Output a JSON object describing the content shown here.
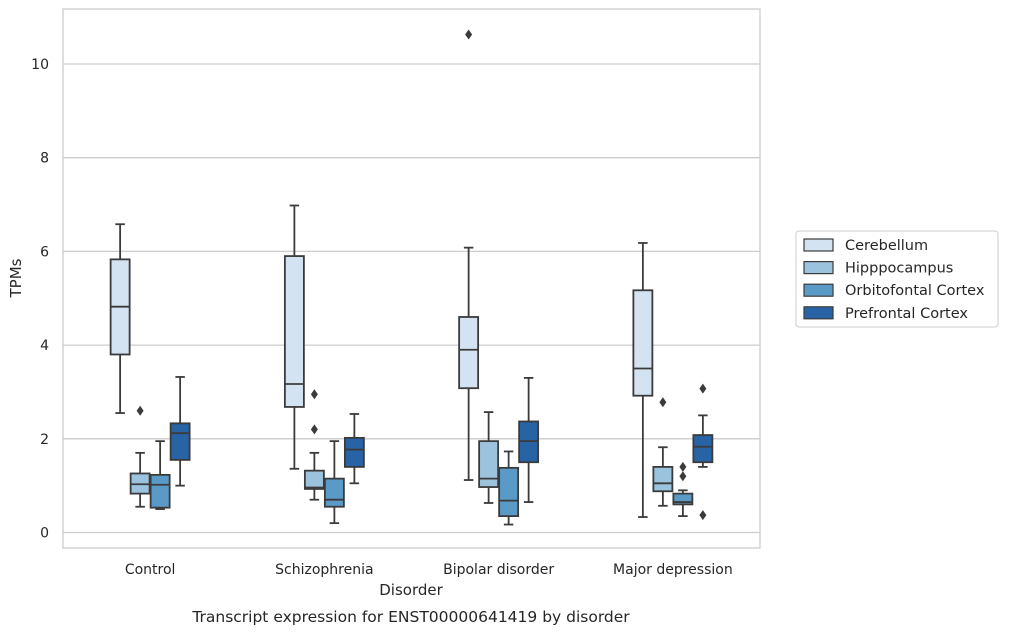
{
  "chart_data": {
    "type": "box",
    "caption": "Transcript expression for ENST00000641419 by disorder",
    "xlabel": "Disorder",
    "ylabel": "TPMs",
    "ylim": [
      -0.3,
      11.2
    ],
    "yticks": [
      0,
      2,
      4,
      6,
      8,
      10
    ],
    "grid": "horizontal",
    "legend_position": "right",
    "categories": [
      "Control",
      "Schizophrenia",
      "Bipolar disorder",
      "Major depression"
    ],
    "series": [
      {
        "name": "Cerebellum",
        "color": "#d3e3f1",
        "boxes": [
          {
            "whislo": 2.55,
            "q1": 3.8,
            "med": 4.82,
            "q3": 5.83,
            "whishi": 6.58,
            "fliers": []
          },
          {
            "whislo": 1.36,
            "q1": 2.68,
            "med": 3.17,
            "q3": 5.9,
            "whishi": 6.98,
            "fliers": []
          },
          {
            "whislo": 1.12,
            "q1": 3.08,
            "med": 3.9,
            "q3": 4.6,
            "whishi": 6.08,
            "fliers": [
              10.63
            ]
          },
          {
            "whislo": 0.33,
            "q1": 2.92,
            "med": 3.5,
            "q3": 5.17,
            "whishi": 6.18,
            "fliers": []
          }
        ]
      },
      {
        "name": "Hipppocampus",
        "color": "#9cc3dd",
        "boxes": [
          {
            "whislo": 0.55,
            "q1": 0.83,
            "med": 1.03,
            "q3": 1.26,
            "whishi": 1.7,
            "fliers": [
              2.6
            ]
          },
          {
            "whislo": 0.7,
            "q1": 0.93,
            "med": 0.96,
            "q3": 1.32,
            "whishi": 1.7,
            "fliers": [
              2.2,
              2.95
            ]
          },
          {
            "whislo": 0.63,
            "q1": 0.97,
            "med": 1.15,
            "q3": 1.95,
            "whishi": 2.57,
            "fliers": []
          },
          {
            "whislo": 0.57,
            "q1": 0.88,
            "med": 1.05,
            "q3": 1.4,
            "whishi": 1.82,
            "fliers": [
              2.78
            ]
          }
        ]
      },
      {
        "name": "Orbitofontal Cortex",
        "color": "#5a9ac6",
        "boxes": [
          {
            "whislo": 0.5,
            "q1": 0.53,
            "med": 1.02,
            "q3": 1.23,
            "whishi": 1.95,
            "fliers": []
          },
          {
            "whislo": 0.2,
            "q1": 0.55,
            "med": 0.7,
            "q3": 1.15,
            "whishi": 1.95,
            "fliers": []
          },
          {
            "whislo": 0.17,
            "q1": 0.35,
            "med": 0.68,
            "q3": 1.38,
            "whishi": 1.73,
            "fliers": []
          },
          {
            "whislo": 0.35,
            "q1": 0.6,
            "med": 0.65,
            "q3": 0.83,
            "whishi": 0.9,
            "fliers": [
              1.2,
              1.4
            ]
          }
        ]
      },
      {
        "name": "Prefrontal Cortex",
        "color": "#2863a6",
        "boxes": [
          {
            "whislo": 1.0,
            "q1": 1.55,
            "med": 2.12,
            "q3": 2.33,
            "whishi": 3.32,
            "fliers": []
          },
          {
            "whislo": 1.05,
            "q1": 1.4,
            "med": 1.77,
            "q3": 2.02,
            "whishi": 2.53,
            "fliers": []
          },
          {
            "whislo": 0.65,
            "q1": 1.5,
            "med": 1.95,
            "q3": 2.37,
            "whishi": 3.3,
            "fliers": []
          },
          {
            "whislo": 1.4,
            "q1": 1.5,
            "med": 1.83,
            "q3": 2.08,
            "whishi": 2.5,
            "fliers": [
              0.37,
              3.07
            ]
          }
        ]
      }
    ]
  }
}
